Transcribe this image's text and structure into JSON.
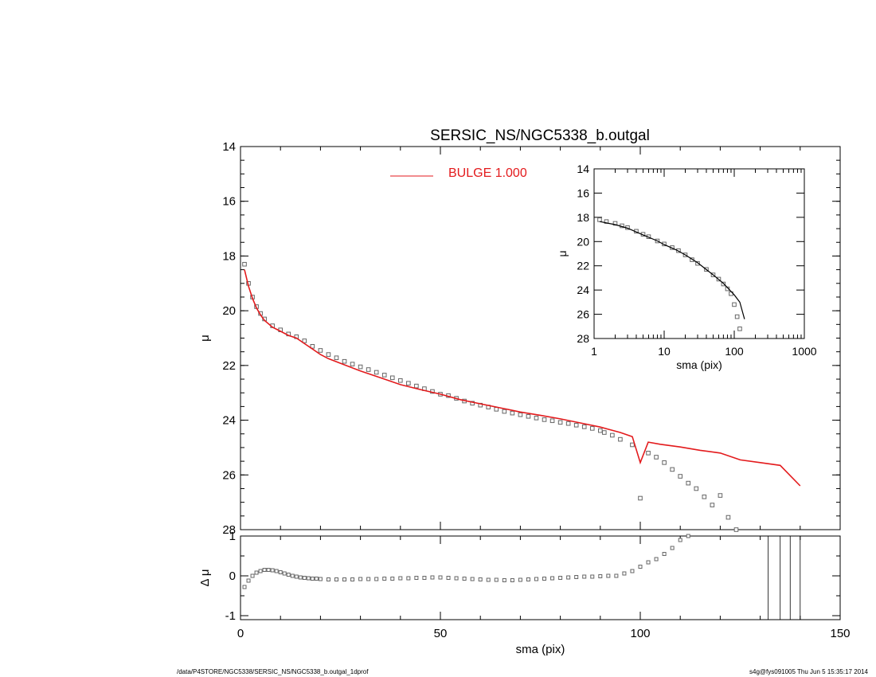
{
  "title": "SERSIC_NS/NGC5338_b.outgal",
  "footer": {
    "left": "/data/P4STORE/NGC5338/SERSIC_NS/NGC5338_b.outgal_1dprof",
    "right": "s4g@fys091005  Thu Jun  5 15:35:17 2014"
  },
  "colors": {
    "model": "#e31a1c",
    "data": "#666666",
    "axes": "#000000"
  },
  "chart_data": [
    {
      "name": "main-profile",
      "type": "scatter",
      "xlabel": "",
      "ylabel": "μ",
      "xlim": [
        0,
        150
      ],
      "ylim": [
        28,
        14
      ],
      "yticks": [
        "14",
        "16",
        "18",
        "20",
        "22",
        "24",
        "26",
        "28"
      ],
      "legend": {
        "label": "BULGE  1.000",
        "placement": "top-center"
      },
      "series": [
        {
          "name": "data",
          "marker": "square",
          "x": [
            1,
            2,
            3,
            4,
            5,
            6,
            8,
            10,
            12,
            14,
            16,
            18,
            20,
            22,
            24,
            26,
            28,
            30,
            32,
            34,
            36,
            38,
            40,
            42,
            44,
            46,
            48,
            50,
            52,
            54,
            56,
            58,
            60,
            62,
            64,
            66,
            68,
            70,
            72,
            74,
            76,
            78,
            80,
            82,
            84,
            86,
            88,
            90,
            91,
            93,
            95,
            98,
            100,
            102,
            104,
            106,
            108,
            110,
            112,
            114,
            116,
            118,
            120,
            122,
            124,
            125
          ],
          "y": [
            18.3,
            19.0,
            19.5,
            19.85,
            20.1,
            20.3,
            20.55,
            20.7,
            20.85,
            20.95,
            21.1,
            21.3,
            21.45,
            21.6,
            21.72,
            21.85,
            21.95,
            22.05,
            22.15,
            22.25,
            22.35,
            22.45,
            22.55,
            22.65,
            22.75,
            22.85,
            22.95,
            23.05,
            23.1,
            23.2,
            23.3,
            23.38,
            23.45,
            23.52,
            23.6,
            23.68,
            23.74,
            23.8,
            23.86,
            23.92,
            23.98,
            24.02,
            24.08,
            24.12,
            24.18,
            24.24,
            24.3,
            24.38,
            24.45,
            24.55,
            24.7,
            24.9,
            26.85,
            25.2,
            25.35,
            25.55,
            25.8,
            26.05,
            26.3,
            26.5,
            26.8,
            27.1,
            26.75,
            27.55,
            28.0,
            28.2
          ]
        },
        {
          "name": "model",
          "style": "line",
          "x": [
            1,
            2,
            3,
            4,
            5,
            6,
            8,
            10,
            12,
            14,
            16,
            18,
            20,
            22,
            25,
            30,
            35,
            40,
            45,
            50,
            55,
            60,
            65,
            70,
            75,
            80,
            85,
            90,
            95,
            98,
            100,
            102,
            105,
            110,
            115,
            120,
            125,
            130,
            135,
            140
          ],
          "y": [
            18.5,
            19.1,
            19.55,
            19.9,
            20.15,
            20.35,
            20.6,
            20.75,
            20.9,
            21.0,
            21.2,
            21.4,
            21.6,
            21.75,
            21.92,
            22.2,
            22.45,
            22.7,
            22.88,
            23.05,
            23.25,
            23.4,
            23.55,
            23.7,
            23.82,
            23.95,
            24.1,
            24.25,
            24.45,
            24.6,
            25.55,
            24.8,
            24.88,
            24.98,
            25.1,
            25.2,
            25.45,
            25.55,
            25.65,
            26.4
          ]
        }
      ]
    },
    {
      "name": "inset-log",
      "type": "scatter",
      "xlabel": "sma (pix)",
      "ylabel": "μ",
      "xscale": "log",
      "xlim": [
        1,
        1000
      ],
      "ylim": [
        28,
        14
      ],
      "xticks": [
        "1",
        "10",
        "100",
        "1000"
      ],
      "yticks": [
        "14",
        "16",
        "18",
        "20",
        "22",
        "24",
        "26",
        "28"
      ],
      "series": [
        {
          "name": "data",
          "marker": "square",
          "x": [
            1.2,
            1.5,
            2,
            2.5,
            3,
            4,
            5,
            6,
            8,
            10,
            13,
            16,
            20,
            25,
            30,
            40,
            50,
            60,
            70,
            80,
            90,
            100,
            110,
            120
          ],
          "y": [
            18.2,
            18.35,
            18.5,
            18.7,
            18.85,
            19.15,
            19.4,
            19.6,
            19.95,
            20.2,
            20.5,
            20.75,
            21.1,
            21.5,
            21.8,
            22.3,
            22.75,
            23.1,
            23.5,
            23.9,
            24.3,
            25.2,
            26.2,
            27.2
          ]
        },
        {
          "name": "model",
          "style": "line",
          "x": [
            1.2,
            2,
            3,
            5,
            8,
            10,
            15,
            20,
            30,
            50,
            70,
            100,
            120,
            140
          ],
          "y": [
            18.35,
            18.6,
            18.9,
            19.45,
            19.95,
            20.25,
            20.7,
            21.1,
            21.75,
            22.75,
            23.45,
            24.4,
            25.0,
            26.4
          ]
        }
      ]
    },
    {
      "name": "residuals",
      "type": "scatter",
      "xlabel": "sma (pix)",
      "ylabel": "Δ μ",
      "xlim": [
        0,
        150
      ],
      "ylim": [
        -1.1,
        1.0
      ],
      "xticks": [
        "0",
        "50",
        "100",
        "150"
      ],
      "yticks": [
        "1",
        "0",
        "-1"
      ],
      "vlines": [
        132,
        135,
        137.5,
        140
      ],
      "series": [
        {
          "name": "residual",
          "marker": "square",
          "x": [
            1,
            2,
            3,
            4,
            5,
            6,
            7,
            8,
            9,
            10,
            11,
            12,
            13,
            14,
            15,
            16,
            17,
            18,
            19,
            20,
            22,
            24,
            26,
            28,
            30,
            32,
            34,
            36,
            38,
            40,
            42,
            44,
            46,
            48,
            50,
            52,
            54,
            56,
            58,
            60,
            62,
            64,
            66,
            68,
            70,
            72,
            74,
            76,
            78,
            80,
            82,
            84,
            86,
            88,
            90,
            92,
            94,
            96,
            98,
            100,
            102,
            104,
            106,
            108,
            110,
            112
          ],
          "y": [
            -0.28,
            -0.12,
            0.0,
            0.08,
            0.12,
            0.15,
            0.15,
            0.14,
            0.12,
            0.09,
            0.06,
            0.03,
            0.0,
            -0.02,
            -0.04,
            -0.05,
            -0.06,
            -0.07,
            -0.07,
            -0.08,
            -0.09,
            -0.09,
            -0.09,
            -0.09,
            -0.08,
            -0.08,
            -0.08,
            -0.07,
            -0.07,
            -0.06,
            -0.06,
            -0.05,
            -0.05,
            -0.04,
            -0.04,
            -0.05,
            -0.06,
            -0.07,
            -0.08,
            -0.09,
            -0.1,
            -0.1,
            -0.11,
            -0.11,
            -0.1,
            -0.09,
            -0.08,
            -0.07,
            -0.06,
            -0.05,
            -0.04,
            -0.03,
            -0.02,
            -0.02,
            -0.01,
            0.0,
            0.0,
            0.06,
            0.12,
            0.23,
            0.34,
            0.42,
            0.55,
            0.7,
            0.9,
            1.0
          ]
        }
      ]
    }
  ]
}
